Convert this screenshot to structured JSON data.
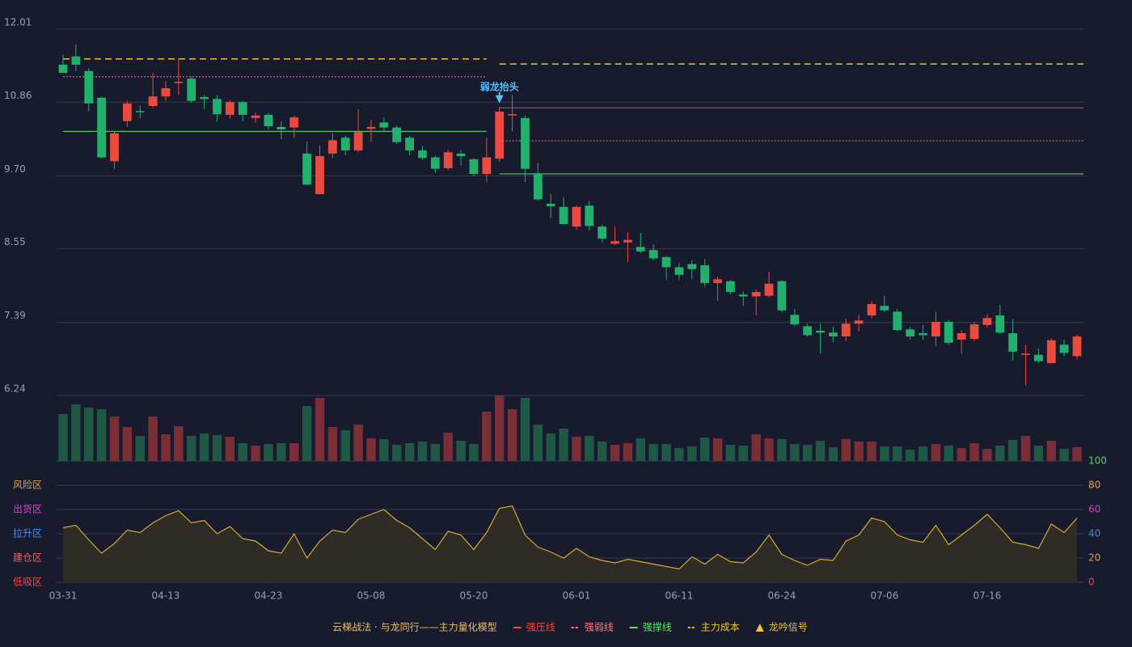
{
  "chart_data": {
    "type": "candlestick",
    "categories": [
      "03-31",
      null,
      null,
      null,
      null,
      null,
      null,
      null,
      "04-13",
      null,
      null,
      null,
      null,
      null,
      null,
      null,
      "04-23",
      null,
      null,
      null,
      null,
      null,
      null,
      null,
      "05-08",
      null,
      null,
      null,
      null,
      null,
      null,
      null,
      "05-20",
      null,
      null,
      null,
      null,
      null,
      null,
      null,
      "06-01",
      null,
      null,
      null,
      null,
      null,
      null,
      null,
      "06-11",
      null,
      null,
      null,
      null,
      null,
      null,
      null,
      "06-24",
      null,
      null,
      null,
      null,
      null,
      null,
      null,
      "07-06",
      null,
      null,
      null,
      null,
      null,
      null,
      null,
      "07-16",
      null,
      null,
      null,
      null,
      null,
      null,
      null
    ],
    "open": [
      11.45,
      11.58,
      11.35,
      10.93,
      9.93,
      10.56,
      10.72,
      10.8,
      10.95,
      11.16,
      11.23,
      10.94,
      10.91,
      10.66,
      10.86,
      10.61,
      10.66,
      10.47,
      10.46,
      10.05,
      9.41,
      10.05,
      10.3,
      10.1,
      10.44,
      10.54,
      10.46,
      10.3,
      10.1,
      9.99,
      9.82,
      10.05,
      9.96,
      9.73,
      9.97,
      10.65,
      10.61,
      9.74,
      9.26,
      9.21,
      8.9,
      9.23,
      8.9,
      8.63,
      8.65,
      8.58,
      8.53,
      8.42,
      8.26,
      8.31,
      8.29,
      8.01,
      8.04,
      7.83,
      7.8,
      7.81,
      8.04,
      7.51,
      7.33,
      7.26,
      7.23,
      7.17,
      7.37,
      7.5,
      7.65,
      7.56,
      7.28,
      7.22,
      7.17,
      7.4,
      7.12,
      7.13,
      7.35,
      7.5,
      7.22,
      6.88,
      6.88,
      6.75,
      7.04,
      6.86
    ],
    "high": [
      11.61,
      11.77,
      11.39,
      10.95,
      10.4,
      10.88,
      10.81,
      11.32,
      11.19,
      11.55,
      11.26,
      10.97,
      10.97,
      10.89,
      10.88,
      10.7,
      10.69,
      10.56,
      10.65,
      10.24,
      10.18,
      10.37,
      10.33,
      10.75,
      10.58,
      10.62,
      10.49,
      10.33,
      10.17,
      10.02,
      10.11,
      10.11,
      9.98,
      10.3,
      10.79,
      10.97,
      10.65,
      9.9,
      9.41,
      9.36,
      9.23,
      9.3,
      8.93,
      8.9,
      8.81,
      8.8,
      8.62,
      8.44,
      8.33,
      8.37,
      8.39,
      8.11,
      8.06,
      7.88,
      7.91,
      8.19,
      8.06,
      7.6,
      7.37,
      7.37,
      7.33,
      7.45,
      7.51,
      7.72,
      7.81,
      7.6,
      7.32,
      7.35,
      7.56,
      7.43,
      7.27,
      7.4,
      7.52,
      7.67,
      7.44,
      7.04,
      6.98,
      7.14,
      7.12,
      7.2
    ],
    "low": [
      11.32,
      11.35,
      10.71,
      9.97,
      9.81,
      10.47,
      10.61,
      10.77,
      10.88,
      10.97,
      10.85,
      10.75,
      10.55,
      10.6,
      10.56,
      10.53,
      10.43,
      10.28,
      10.3,
      9.55,
      9.41,
      9.98,
      10.02,
      10.07,
      10.24,
      10.4,
      10.2,
      10.02,
      9.95,
      9.74,
      9.79,
      9.86,
      9.69,
      9.6,
      9.92,
      10.4,
      9.6,
      9.31,
      9.03,
      8.93,
      8.85,
      8.84,
      8.65,
      8.61,
      8.34,
      8.48,
      8.37,
      8.06,
      8.06,
      8.07,
      7.95,
      7.73,
      7.83,
      7.65,
      7.5,
      7.78,
      7.55,
      7.33,
      7.17,
      6.9,
      7.08,
      7.1,
      7.25,
      7.46,
      7.55,
      7.25,
      7.12,
      7.12,
      7.02,
      7.04,
      6.9,
      7.1,
      7.31,
      7.21,
      6.79,
      6.4,
      6.75,
      6.74,
      6.86,
      6.81
    ],
    "close": [
      11.32,
      11.45,
      10.84,
      9.99,
      10.37,
      10.84,
      10.7,
      10.95,
      11.08,
      11.18,
      10.88,
      10.91,
      10.67,
      10.86,
      10.66,
      10.65,
      10.48,
      10.43,
      10.62,
      9.56,
      10.01,
      10.26,
      10.1,
      10.39,
      10.47,
      10.46,
      10.23,
      10.1,
      9.98,
      9.81,
      10.07,
      10.01,
      9.73,
      9.99,
      10.71,
      10.67,
      9.81,
      9.33,
      9.22,
      8.94,
      9.21,
      8.91,
      8.71,
      8.67,
      8.69,
      8.51,
      8.4,
      8.26,
      8.14,
      8.23,
      8.01,
      8.07,
      7.87,
      7.8,
      7.87,
      8.0,
      7.58,
      7.36,
      7.19,
      7.23,
      7.17,
      7.37,
      7.42,
      7.68,
      7.58,
      7.27,
      7.17,
      7.19,
      7.4,
      7.07,
      7.22,
      7.36,
      7.46,
      7.23,
      6.93,
      6.9,
      6.78,
      7.11,
      6.91,
      7.17
    ],
    "up_color": "#eb4b3f",
    "down_color": "#22b16c",
    "ylim": [
      6.24,
      12.01
    ],
    "yticks": [
      12.01,
      10.86,
      {
        "value": 9.7,
        "label": "9.70"
      },
      8.55,
      7.39,
      6.24
    ],
    "grid": true,
    "volume": [
      58,
      70,
      66,
      64,
      55,
      42,
      31,
      55,
      33,
      43,
      31,
      34,
      32,
      30,
      22,
      19,
      21,
      22,
      22,
      68,
      78,
      42,
      38,
      45,
      28,
      27,
      20,
      22,
      24,
      21,
      35,
      25,
      21,
      61,
      81,
      64,
      78,
      45,
      34,
      40,
      30,
      31,
      24,
      20,
      22,
      28,
      21,
      21,
      16,
      18,
      29,
      28,
      20,
      19,
      33,
      28,
      27,
      21,
      20,
      25,
      17,
      27,
      24,
      24,
      18,
      18,
      14,
      18,
      21,
      19,
      16,
      22,
      15,
      19,
      26,
      31,
      19,
      25,
      15,
      17
    ],
    "volume_lim": [
      0,
      81
    ],
    "volume_up_color": "#7a2e36",
    "volume_down_color": "#1f5845",
    "levels": [
      {
        "name": "强压线",
        "color": "#eb4b3f",
        "style": "solid",
        "segments": [
          {
            "from": 34,
            "to": 79,
            "value": 10.77
          }
        ]
      },
      {
        "name": "强弱线",
        "color": "#f08080",
        "style": "dotted",
        "segments": [
          {
            "from": 0,
            "to": 33,
            "value": 11.26
          },
          {
            "from": 34,
            "to": 79,
            "value": 10.25
          }
        ]
      },
      {
        "name": "强撑线",
        "color": "#5ee26a",
        "style": "solid",
        "segments": [
          {
            "from": 0,
            "to": 33,
            "value": 10.4
          },
          {
            "from": 34,
            "to": 79,
            "value": 9.73
          }
        ]
      },
      {
        "name": "主力成本",
        "color": "#f2c230",
        "style": "dashed",
        "segments": [
          {
            "from": 0,
            "to": 33,
            "value": 11.54
          },
          {
            "from": 34,
            "to": 79,
            "value": 11.46
          }
        ]
      }
    ],
    "signal": {
      "name": "龙吟信号",
      "color": "#f2c230"
    },
    "annotations": [
      {
        "index": 34,
        "text": "弱龙抬头",
        "color": "#5bc0f5"
      }
    ],
    "indicator": {
      "values": [
        45,
        47,
        35,
        24,
        32,
        43,
        41,
        49,
        55,
        59,
        49,
        51,
        40,
        46,
        36,
        34,
        26,
        24,
        40,
        20,
        34,
        43,
        41,
        52,
        56,
        60,
        51,
        45,
        36,
        27,
        42,
        39,
        27,
        41,
        61,
        63,
        39,
        29,
        25,
        20,
        28,
        21,
        18,
        16,
        19,
        17,
        15,
        13,
        11,
        21,
        15,
        23,
        17,
        16,
        25,
        39,
        23,
        18,
        14,
        19,
        18,
        34,
        39,
        53,
        50,
        39,
        35,
        33,
        47,
        31,
        39,
        47,
        56,
        45,
        33,
        31,
        28,
        48,
        41,
        53
      ],
      "color": "#d4ac2a",
      "ylim": [
        0,
        100
      ],
      "yticks": [
        100,
        80,
        60,
        40,
        20,
        0
      ],
      "ytick_colors": [
        "#4cd964",
        "#e8a33c",
        "#d63ad6",
        "#3c8ce8",
        "#e8a33c",
        "#eb4b3f"
      ],
      "zones": [
        {
          "value": 80,
          "label": "风险区",
          "color": "#e8a33c"
        },
        {
          "value": 60,
          "label": "出货区",
          "color": "#e040e0"
        },
        {
          "value": 40,
          "label": "拉升区",
          "color": "#4a8ff0"
        },
        {
          "value": 20,
          "label": "建仓区",
          "color": "#f06060"
        },
        {
          "value": 0,
          "label": "低吸区",
          "color": "#f04848"
        }
      ]
    },
    "title": "云梯战法 · 与龙同行——主力量化模型",
    "title_color": "#e8c06a"
  }
}
